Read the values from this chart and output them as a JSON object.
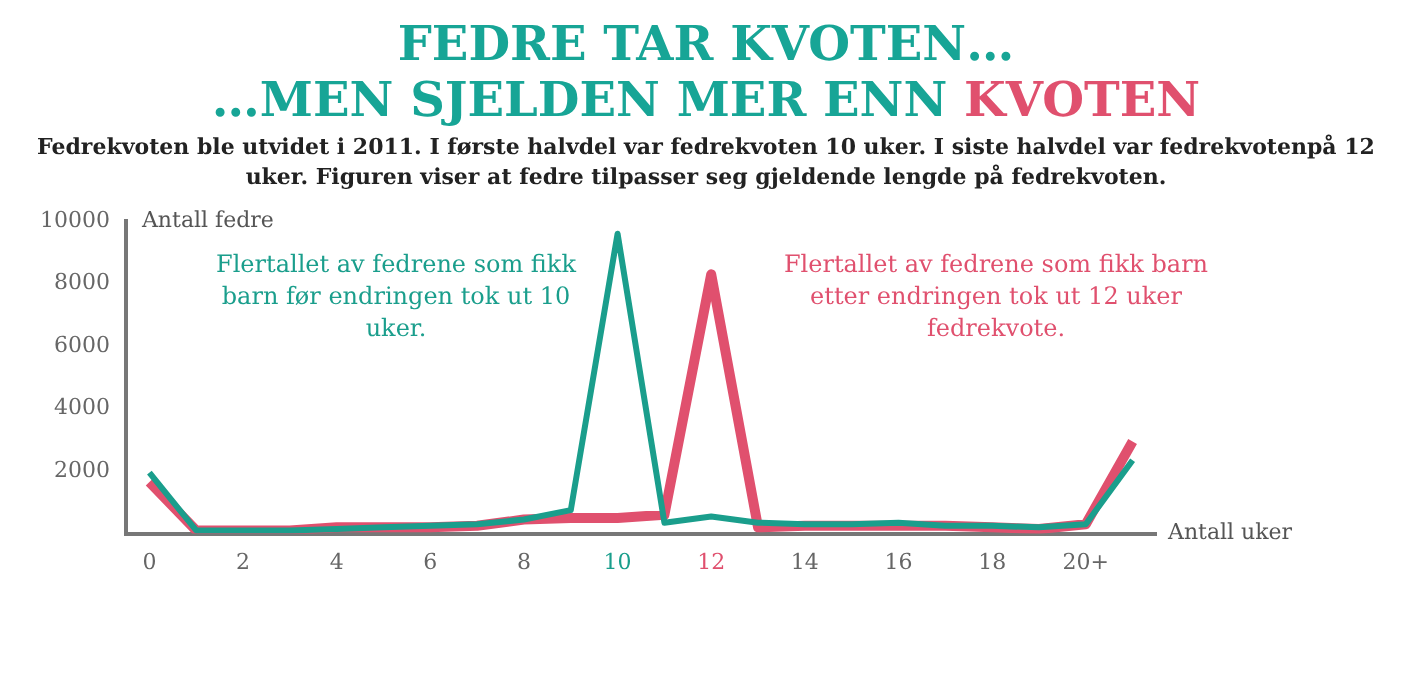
{
  "chart_data": {
    "type": "line",
    "title": "FEDRE TAR KVOTEN…\n…MEN SJELDEN MER ENN KVOTEN",
    "subtitle": "Fedrekvoten ble utvidet i 2011. I første halvdel var fedrekvoten 10 uker. I siste halvdel var fedrekvotenpå  12 uker. Figuren viser at fedre tilpasser seg gjeldende lengde på fedrekvoten.",
    "ylabel": "Antall fedre",
    "xlabel": "Antall uker",
    "categories": [
      "0",
      null,
      "2",
      null,
      "4",
      null,
      "6",
      null,
      "8",
      null,
      "10",
      null,
      "12",
      null,
      "14",
      null,
      "16",
      null,
      "18",
      null,
      "20+",
      null
    ],
    "series": [
      {
        "color": "#1a9e8c",
        "values": [
          1950,
          100,
          100,
          100,
          150,
          200,
          250,
          300,
          450,
          750,
          9600,
          350,
          550,
          350,
          300,
          300,
          350,
          250,
          250,
          200,
          300,
          2350
        ]
      },
      {
        "color": "#e0506e",
        "values": [
          1650,
          100,
          100,
          100,
          200,
          200,
          200,
          250,
          450,
          500,
          500,
          600,
          8300,
          200,
          250,
          250,
          250,
          250,
          200,
          150,
          300,
          2950
        ]
      }
    ],
    "ylim": [
      0,
      10000
    ],
    "yticks": [
      2000,
      4000,
      6000,
      8000,
      10000
    ],
    "grid": false,
    "legend": false,
    "marker": "none",
    "line_style": "solid",
    "annotations": [
      "Flertallet av fedrene som fikk barn før endringen tok ut 10 uker.",
      "Flertallet av fedrene som fikk barn etter endringen tok ut 12 uker fedrekvote."
    ]
  }
}
